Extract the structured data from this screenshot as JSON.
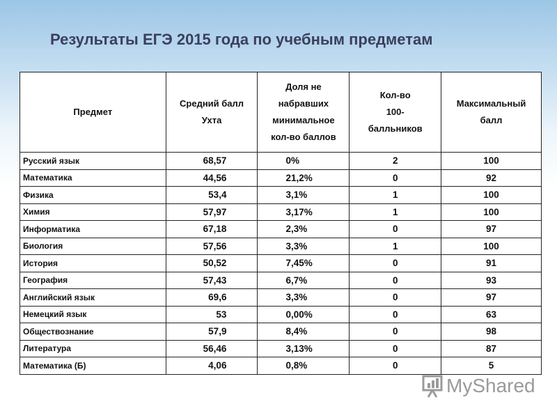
{
  "title": "Результаты ЕГЭ 2015 года по учебным предметам",
  "table": {
    "header": [
      "Предмет",
      "Средний балл\nУхта",
      "Доля не\nнабравших\nминимальное\nкол-во баллов",
      "Кол-во\n100-\nбалльников",
      "Максимальный\nбалл"
    ],
    "rows": [
      [
        "Русский язык",
        "68,57",
        "0%",
        "2",
        "100"
      ],
      [
        "Математика",
        "44,56",
        "21,2%",
        "0",
        "92"
      ],
      [
        "Физика",
        "53,4",
        "3,1%",
        "1",
        "100"
      ],
      [
        "Химия",
        "57,97",
        "3,17%",
        "1",
        "100"
      ],
      [
        "Информатика",
        "67,18",
        "2,3%",
        "0",
        "97"
      ],
      [
        "Биология",
        "57,56",
        "3,3%",
        "1",
        "100"
      ],
      [
        "История",
        "50,52",
        "7,45%",
        "0",
        "91"
      ],
      [
        "География",
        "57,43",
        "6,7%",
        "0",
        "93"
      ],
      [
        "Английский язык",
        "69,6",
        "3,3%",
        "0",
        "97"
      ],
      [
        "Немецкий язык",
        "53",
        "0,00%",
        "0",
        "63"
      ],
      [
        "Обществознание",
        "57,9",
        "8,4%",
        "0",
        "98"
      ],
      [
        "Литература",
        "56,46",
        "3,13%",
        "0",
        "87"
      ],
      [
        "Математика (Б)",
        "4,06",
        "0,8%",
        "0",
        "5"
      ]
    ]
  },
  "watermark": "MyShared"
}
